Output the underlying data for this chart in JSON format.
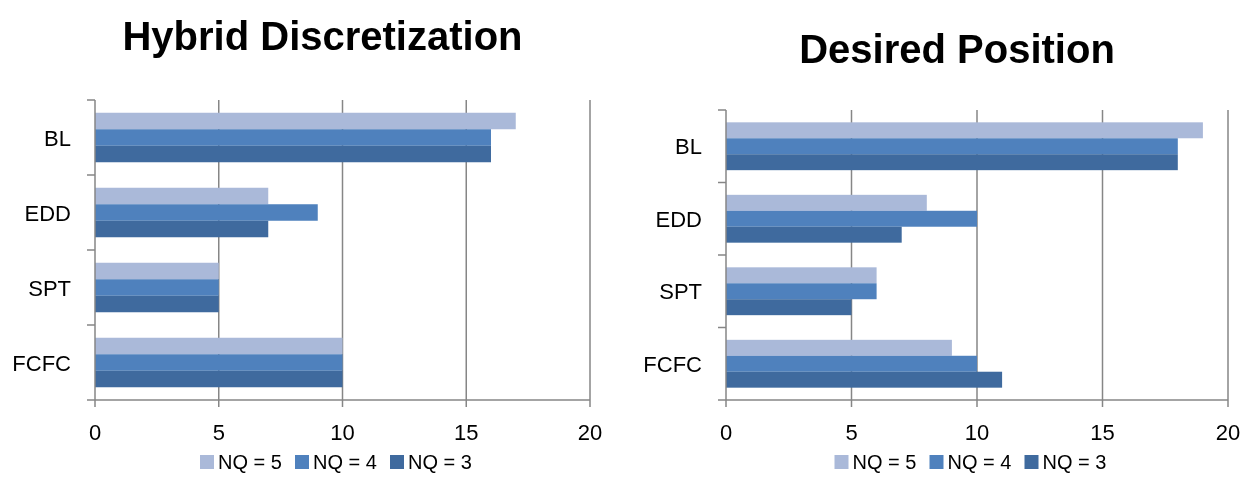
{
  "chart_data": [
    {
      "type": "bar",
      "orientation": "horizontal",
      "title": "Hybrid Discretization",
      "categories": [
        "BL",
        "EDD",
        "SPT",
        "FCFC"
      ],
      "series": [
        {
          "name": "NQ = 5",
          "color": "#aab9d9",
          "values": [
            17,
            7,
            5,
            10
          ]
        },
        {
          "name": "NQ = 4",
          "color": "#4f81bd",
          "values": [
            16,
            9,
            5,
            10
          ]
        },
        {
          "name": "NQ = 3",
          "color": "#3f6a9e",
          "values": [
            16,
            7,
            5,
            10
          ]
        }
      ],
      "xlim": [
        0,
        20
      ],
      "xticks": [
        0,
        5,
        10,
        15,
        20
      ],
      "grid": "x",
      "legend": "bottom"
    },
    {
      "type": "bar",
      "orientation": "horizontal",
      "title": "Desired Position",
      "categories": [
        "BL",
        "EDD",
        "SPT",
        "FCFC"
      ],
      "series": [
        {
          "name": "NQ = 5",
          "color": "#aab9d9",
          "values": [
            19,
            8,
            6,
            9
          ]
        },
        {
          "name": "NQ = 4",
          "color": "#4f81bd",
          "values": [
            18,
            10,
            6,
            10
          ]
        },
        {
          "name": "NQ = 3",
          "color": "#3f6a9e",
          "values": [
            18,
            7,
            5,
            11
          ]
        }
      ],
      "xlim": [
        0,
        20
      ],
      "xticks": [
        0,
        5,
        10,
        15,
        20
      ],
      "grid": "x",
      "legend": "bottom"
    }
  ]
}
